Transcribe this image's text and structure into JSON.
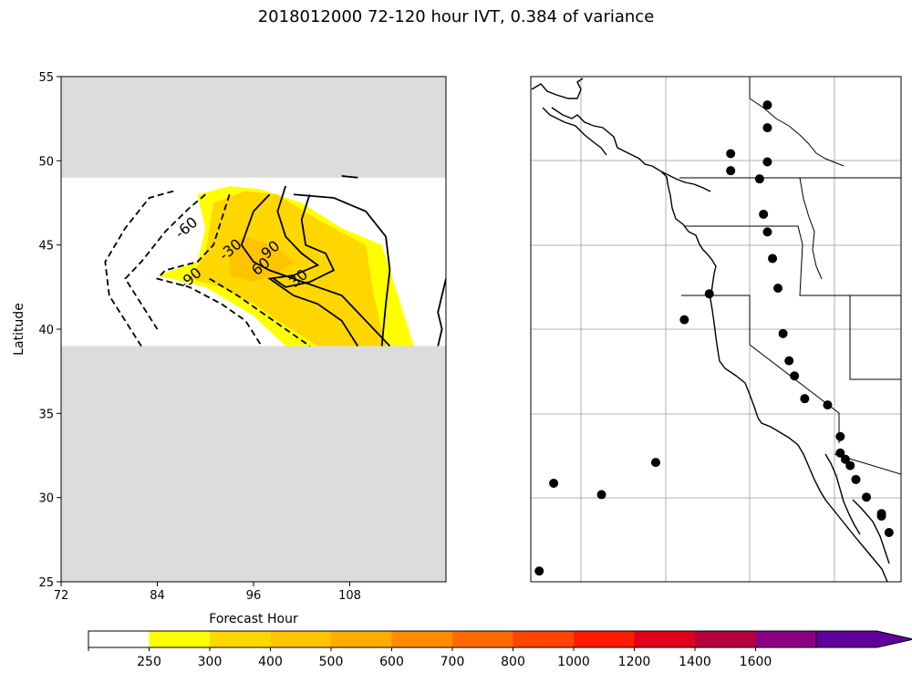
{
  "title": "2018012000 72-120 hour IVT, 0.384 of variance",
  "chart_data": [
    {
      "type": "contour",
      "xlabel": "Forecast Hour",
      "ylabel": "Latitude",
      "xlim": [
        72,
        120
      ],
      "ylim": [
        25,
        55
      ],
      "x_ticks": [
        "72",
        "84",
        "96",
        "108"
      ],
      "y_ticks": [
        "25",
        "30",
        "35",
        "40",
        "45",
        "50",
        "55"
      ],
      "masked_regions": [
        {
          "lat_range": [
            49,
            55
          ],
          "color": "#dcdcdc"
        },
        {
          "lat_range": [
            25,
            39
          ],
          "color": "#dcdcdc"
        }
      ],
      "filled_contours": [
        {
          "level": 250,
          "color": "#ffff00",
          "points": [
            [
              89,
              48
            ],
            [
              93,
              48.5
            ],
            [
              97,
              48.3
            ],
            [
              102,
              47.5
            ],
            [
              107,
              46
            ],
            [
              112,
              45
            ],
            [
              114,
              42
            ],
            [
              116,
              39
            ],
            [
              108,
              39
            ],
            [
              100,
              39
            ],
            [
              96,
              40.8
            ],
            [
              90,
              42.5
            ],
            [
              84,
              43.2
            ],
            [
              89,
              44
            ],
            [
              90,
              46
            ]
          ]
        },
        {
          "level": 300,
          "color": "#ffd700",
          "points": [
            [
              91,
              47.5
            ],
            [
              95,
              48.2
            ],
            [
              99,
              48
            ],
            [
              104,
              46.5
            ],
            [
              110,
              45
            ],
            [
              111,
              42
            ],
            [
              112.5,
              39
            ],
            [
              104,
              39
            ],
            [
              99,
              40.5
            ],
            [
              96,
              41.5
            ],
            [
              92,
              42.5
            ],
            [
              88,
              43
            ],
            [
              90,
              44.5
            ]
          ]
        },
        {
          "level": 400,
          "color": "#ffc400",
          "points": [
            [
              93,
              45
            ],
            [
              95,
              45.5
            ],
            [
              97,
              45.2
            ],
            [
              99,
              44.8
            ],
            [
              101,
              44
            ],
            [
              99,
              43.3
            ],
            [
              96,
              42.8
            ],
            [
              93,
              43.2
            ]
          ]
        }
      ],
      "contour_labels": [
        {
          "text": "-60",
          "x": 88,
          "y": 45.8
        },
        {
          "text": "-30",
          "x": 93.5,
          "y": 44.5
        },
        {
          "text": "-90",
          "x": 88.5,
          "y": 42.8
        },
        {
          "text": "90",
          "x": 98.5,
          "y": 44.5
        },
        {
          "text": "60",
          "x": 97.3,
          "y": 43.5
        },
        {
          "text": "30",
          "x": 102,
          "y": 42.8
        }
      ],
      "contours": [
        {
          "level": -90,
          "style": "dashed",
          "points": [
            [
              86,
              48.2
            ],
            [
              83,
              47.8
            ],
            [
              80,
              46
            ],
            [
              77.5,
              44
            ],
            [
              78,
              42
            ],
            [
              80,
              40.5
            ],
            [
              82,
              39
            ]
          ]
        },
        {
          "level": -60,
          "style": "dashed",
          "points": [
            [
              90,
              48
            ],
            [
              88,
              47.2
            ],
            [
              85,
              45.8
            ],
            [
              82,
              44
            ],
            [
              80,
              43
            ],
            [
              82,
              41.5
            ],
            [
              84,
              40
            ]
          ]
        },
        {
          "level": -30,
          "style": "dashed",
          "points": [
            [
              93,
              48
            ],
            [
              92,
              46.5
            ],
            [
              91,
              45
            ],
            [
              89,
              44
            ],
            [
              85,
              43.5
            ],
            [
              84,
              43
            ],
            [
              88,
              42.5
            ],
            [
              92,
              41.5
            ],
            [
              95,
              40.5
            ],
            [
              97,
              39
            ]
          ]
        },
        {
          "level": -30,
          "style": "dashed",
          "points": [
            [
              90.5,
              43
            ],
            [
              94,
              42
            ],
            [
              97,
              41
            ],
            [
              100,
              40
            ],
            [
              103,
              39
            ]
          ]
        },
        {
          "level": 30,
          "style": "solid",
          "points": [
            [
              98,
              48
            ],
            [
              96,
              47
            ],
            [
              94.5,
              45
            ],
            [
              96,
              44
            ],
            [
              98,
              43.5
            ],
            [
              101,
              43
            ],
            [
              104,
              42.5
            ],
            [
              107,
              42
            ],
            [
              110,
              40.5
            ],
            [
              113,
              39
            ]
          ]
        },
        {
          "level": 60,
          "style": "solid",
          "points": [
            [
              100,
              48.5
            ],
            [
              99,
              47
            ],
            [
              100,
              45.5
            ],
            [
              102,
              44.5
            ],
            [
              104,
              43.8
            ],
            [
              101,
              43.2
            ],
            [
              98,
              43
            ],
            [
              101,
              42
            ],
            [
              104,
              41.5
            ],
            [
              107,
              40.5
            ],
            [
              109,
              39
            ]
          ]
        },
        {
          "level": 90,
          "style": "solid",
          "points": [
            [
              103,
              48
            ],
            [
              102,
              46.5
            ],
            [
              102.5,
              45
            ],
            [
              105,
              44.5
            ],
            [
              106,
              43.5
            ],
            [
              103,
              42.8
            ],
            [
              100,
              42.5
            ],
            [
              98.5,
              43
            ]
          ]
        },
        {
          "level": 30,
          "style": "solid",
          "points": [
            [
              101,
              48
            ],
            [
              106,
              47.8
            ],
            [
              110,
              47
            ],
            [
              112.5,
              45.5
            ],
            [
              113,
              43.5
            ],
            [
              112.5,
              41.5
            ],
            [
              112,
              39
            ]
          ]
        },
        {
          "level": 30,
          "style": "solid",
          "points": [
            [
              120,
              43
            ],
            [
              119,
              41
            ],
            [
              119.5,
              40
            ],
            [
              119,
              39
            ]
          ]
        },
        {
          "level": 30,
          "style": "solid",
          "points": [
            [
              107,
              49.1
            ],
            [
              109,
              49
            ]
          ]
        }
      ]
    },
    {
      "type": "map",
      "description_note": "",
      "station_points": [
        [
          49.8,
          98.3
        ],
        [
          54.6,
          84.4
        ],
        [
          70.5,
          86.2
        ],
        [
          82.9,
          104.8
        ],
        [
          88.5,
          81.1
        ],
        [
          98.0,
          58.5
        ],
        [
          106.3,
          54.4
        ],
        [
          113.4,
          32.2
        ],
        [
          113.4,
          34.9
        ],
        [
          125.6,
          24.5
        ],
        [
          125.6,
          28.1
        ],
        [
          125.6,
          33.5
        ],
        [
          123.0,
          36.2
        ],
        [
          124.3,
          41.8
        ],
        [
          125.6,
          44.6
        ],
        [
          127.3,
          48.8
        ],
        [
          129.1,
          53.5
        ],
        [
          130.8,
          60.7
        ],
        [
          132.8,
          65.0
        ],
        [
          134.6,
          67.4
        ],
        [
          138.0,
          71.0
        ],
        [
          145.6,
          72.0
        ],
        [
          149.8,
          77.0
        ],
        [
          149.8,
          79.6
        ],
        [
          151.5,
          80.6
        ],
        [
          153.1,
          81.6
        ],
        [
          155.0,
          83.8
        ],
        [
          158.5,
          86.6
        ],
        [
          163.5,
          89.2
        ],
        [
          163.5,
          89.6
        ],
        [
          166.0,
          92.2
        ]
      ]
    }
  ],
  "colorbar": {
    "ticks": [
      "250",
      "300",
      "400",
      "500",
      "600",
      "700",
      "800",
      "1000",
      "1200",
      "1400",
      "1600"
    ],
    "colors": [
      "#ffffff",
      "#ffff00",
      "#ffd700",
      "#ffc400",
      "#ffab00",
      "#ff8c00",
      "#ff6a00",
      "#ff4500",
      "#ff1a00",
      "#e0001a",
      "#b4003c",
      "#8b0082",
      "#5f009a"
    ]
  }
}
